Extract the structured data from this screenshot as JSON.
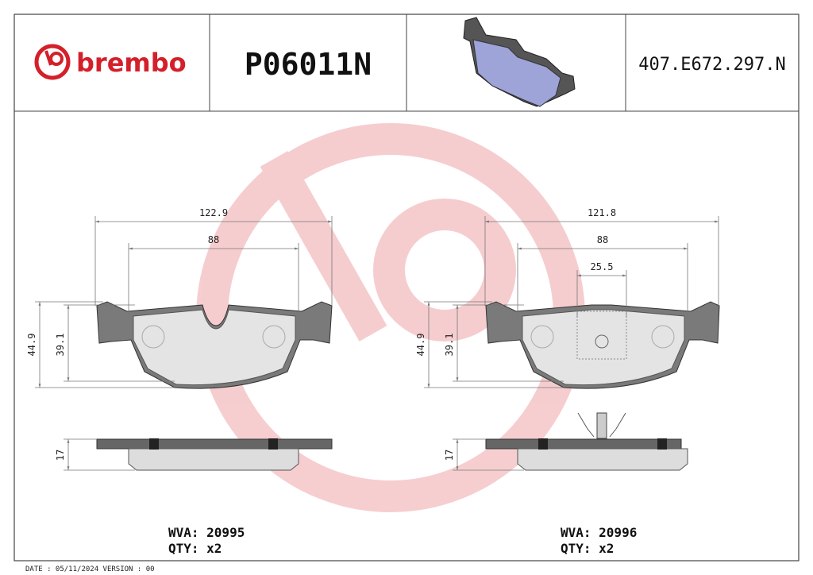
{
  "header": {
    "brand": "brembo",
    "code": "P06011N",
    "reference": "407.E672.297.N"
  },
  "drawings": [
    {
      "dimensions": {
        "width": "122.9",
        "inner_width": "88",
        "height": "44.9",
        "inner_height": "39.1",
        "thickness": "17"
      },
      "wva": "WVA: 20995",
      "qty": "QTY: x2"
    },
    {
      "dimensions": {
        "width": "121.8",
        "inner_width": "88",
        "clip_width": "25.5",
        "height": "44.9",
        "inner_height": "39.1",
        "thickness": "17"
      },
      "wva": "WVA: 20996",
      "qty": "QTY: x2"
    }
  ],
  "footer": "DATE : 05/11/2024 VERSION : 00"
}
